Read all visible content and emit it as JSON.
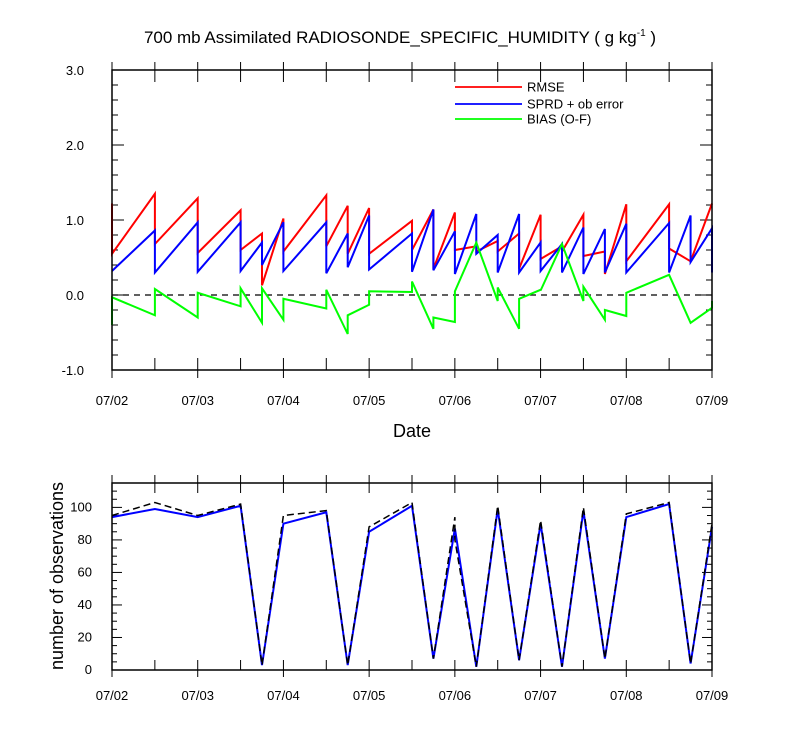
{
  "chart_data": [
    {
      "type": "line",
      "title_main": "700 mb Assimilated RADIOSONDE_SPECIFIC_HUMIDITY ( g kg",
      "title_sup": "-1",
      "title_end": " )",
      "xlabel": "Date",
      "ylabel": "",
      "xlim": [
        0,
        7
      ],
      "ylim": [
        -1.0,
        3.0
      ],
      "yticks": [
        -1.0,
        0.0,
        1.0,
        2.0,
        3.0
      ],
      "ytick_labels": [
        "-1.0",
        "0.0",
        "1.0",
        "2.0",
        "3.0"
      ],
      "xticks": [
        0,
        1,
        2,
        3,
        4,
        5,
        6,
        7
      ],
      "xtick_labels": [
        "07/02",
        "07/03",
        "07/04",
        "07/05",
        "07/06",
        "07/07",
        "07/08",
        "07/09"
      ],
      "zero_line": 0.0,
      "legend": [
        "RMSE",
        "SPRD + ob error",
        "BIAS (O-F)"
      ],
      "colors": {
        "RMSE": "#ff0000",
        "SPRD": "#0000ff",
        "BIAS": "#00ff00",
        "zero": "#000000"
      },
      "series": [
        {
          "name": "RMSE",
          "points": [
            [
              0,
              1.22
            ],
            [
              0,
              0.55
            ],
            [
              0.5,
              1.35
            ],
            [
              0.5,
              0.68
            ],
            [
              1,
              1.29
            ],
            [
              1,
              0.56
            ],
            [
              1.5,
              1.13
            ],
            [
              1.5,
              0.6
            ],
            [
              1.75,
              0.82
            ],
            [
              1.75,
              0.13
            ],
            [
              2,
              1.02
            ],
            [
              2,
              0.58
            ],
            [
              2.5,
              1.33
            ],
            [
              2.5,
              0.65
            ],
            [
              2.75,
              1.19
            ],
            [
              2.75,
              0.55
            ],
            [
              3,
              1.16
            ],
            [
              3,
              0.55
            ],
            [
              3.5,
              0.99
            ],
            [
              3.5,
              0.6
            ],
            [
              3.75,
              1.14
            ],
            [
              3.75,
              0.35
            ],
            [
              4,
              1.1
            ],
            [
              4,
              0.6
            ],
            [
              4.25,
              0.65
            ],
            [
              4.25,
              0.58
            ],
            [
              4.5,
              0.72
            ],
            [
              4.5,
              0.58
            ],
            [
              4.75,
              0.82
            ],
            [
              4.75,
              0.35
            ],
            [
              5,
              1.07
            ],
            [
              5,
              0.48
            ],
            [
              5.25,
              0.65
            ],
            [
              5.25,
              0.58
            ],
            [
              5.5,
              1.07
            ],
            [
              5.5,
              0.52
            ],
            [
              5.75,
              0.58
            ],
            [
              5.75,
              0.28
            ],
            [
              6,
              1.21
            ],
            [
              6,
              0.45
            ],
            [
              6.5,
              1.21
            ],
            [
              6.5,
              0.62
            ],
            [
              6.75,
              0.45
            ],
            [
              6.75,
              0.45
            ],
            [
              7,
              1.22
            ]
          ]
        },
        {
          "name": "SPRD + ob error",
          "points": [
            [
              0,
              0.32
            ],
            [
              0.5,
              0.86
            ],
            [
              0.5,
              0.3
            ],
            [
              1,
              0.97
            ],
            [
              1,
              0.31
            ],
            [
              1.5,
              0.97
            ],
            [
              1.5,
              0.32
            ],
            [
              1.75,
              0.7
            ],
            [
              1.75,
              0.4
            ],
            [
              2,
              0.97
            ],
            [
              2,
              0.32
            ],
            [
              2.5,
              0.97
            ],
            [
              2.5,
              0.29
            ],
            [
              2.75,
              0.82
            ],
            [
              2.75,
              0.37
            ],
            [
              3,
              1.06
            ],
            [
              3,
              0.34
            ],
            [
              3.5,
              0.82
            ],
            [
              3.5,
              0.31
            ],
            [
              3.75,
              1.14
            ],
            [
              3.75,
              0.33
            ],
            [
              4,
              0.85
            ],
            [
              4,
              0.28
            ],
            [
              4.25,
              1.08
            ],
            [
              4.25,
              0.55
            ],
            [
              4.5,
              0.8
            ],
            [
              4.5,
              0.3
            ],
            [
              4.75,
              1.08
            ],
            [
              4.75,
              0.3
            ],
            [
              5,
              0.7
            ],
            [
              5,
              0.32
            ],
            [
              5.25,
              0.68
            ],
            [
              5.25,
              0.3
            ],
            [
              5.5,
              0.9
            ],
            [
              5.5,
              0.28
            ],
            [
              5.75,
              0.88
            ],
            [
              5.75,
              0.3
            ],
            [
              6,
              0.95
            ],
            [
              6,
              0.3
            ],
            [
              6.5,
              0.96
            ],
            [
              6.5,
              0.3
            ],
            [
              6.75,
              1.06
            ],
            [
              6.75,
              0.44
            ],
            [
              7,
              0.89
            ],
            [
              7,
              0.3
            ]
          ]
        },
        {
          "name": "BIAS (O-F)",
          "points": [
            [
              0,
              -0.4
            ],
            [
              0,
              -0.03
            ],
            [
              0.5,
              -0.27
            ],
            [
              0.5,
              0.08
            ],
            [
              1,
              -0.3
            ],
            [
              1,
              0.03
            ],
            [
              1.5,
              -0.15
            ],
            [
              1.5,
              0.09
            ],
            [
              1.75,
              -0.37
            ],
            [
              1.75,
              0.09
            ],
            [
              2,
              -0.33
            ],
            [
              2,
              -0.05
            ],
            [
              2.5,
              -0.18
            ],
            [
              2.5,
              0.07
            ],
            [
              2.75,
              -0.52
            ],
            [
              2.75,
              -0.27
            ],
            [
              3,
              -0.13
            ],
            [
              3,
              0.05
            ],
            [
              3.5,
              0.04
            ],
            [
              3.5,
              0.18
            ],
            [
              3.75,
              -0.45
            ],
            [
              3.75,
              -0.3
            ],
            [
              4,
              -0.36
            ],
            [
              4,
              0.05
            ],
            [
              4.25,
              0.7
            ],
            [
              4.5,
              -0.08
            ],
            [
              4.5,
              0.1
            ],
            [
              4.75,
              -0.45
            ],
            [
              4.75,
              -0.05
            ],
            [
              5,
              0.07
            ],
            [
              5,
              0.06
            ],
            [
              5.25,
              0.68
            ],
            [
              5.5,
              -0.08
            ],
            [
              5.5,
              0.11
            ],
            [
              5.75,
              -0.33
            ],
            [
              5.75,
              -0.2
            ],
            [
              6,
              -0.28
            ],
            [
              6,
              0.03
            ],
            [
              6.5,
              0.27
            ],
            [
              6.75,
              -0.37
            ],
            [
              7,
              -0.17
            ],
            [
              7,
              -0.08
            ]
          ]
        }
      ]
    },
    {
      "type": "line",
      "title": "",
      "xlabel": "",
      "ylabel": "number of observations",
      "xlim": [
        0,
        7
      ],
      "ylim": [
        0,
        115
      ],
      "yticks": [
        0,
        20,
        40,
        60,
        80,
        100
      ],
      "ytick_labels": [
        "0",
        "20",
        "40",
        "60",
        "80",
        "100"
      ],
      "xticks": [
        0,
        1,
        2,
        3,
        4,
        5,
        6,
        7
      ],
      "xtick_labels": [
        "07/02",
        "07/03",
        "07/04",
        "07/05",
        "07/06",
        "07/07",
        "07/08",
        "07/09"
      ],
      "colors": {
        "used": "#0000ff",
        "available": "#000000"
      },
      "series": [
        {
          "name": "used",
          "style": "solid",
          "points": [
            [
              0,
              94
            ],
            [
              0.5,
              99
            ],
            [
              1,
              94
            ],
            [
              1.5,
              101
            ],
            [
              1.75,
              3
            ],
            [
              2,
              90
            ],
            [
              2.5,
              97
            ],
            [
              2.75,
              3
            ],
            [
              3,
              85
            ],
            [
              3.5,
              101
            ],
            [
              3.75,
              7
            ],
            [
              4,
              87
            ],
            [
              4.25,
              2
            ],
            [
              4.5,
              99
            ],
            [
              4.75,
              6
            ],
            [
              5,
              90
            ],
            [
              5.25,
              2
            ],
            [
              5.5,
              98
            ],
            [
              5.75,
              7
            ],
            [
              6,
              94
            ],
            [
              6.5,
              102
            ],
            [
              6.75,
              4
            ],
            [
              7,
              88
            ]
          ]
        },
        {
          "name": "available",
          "style": "dashed",
          "points": [
            [
              0,
              95
            ],
            [
              0.5,
              103
            ],
            [
              1,
              95
            ],
            [
              1.5,
              102
            ],
            [
              1.75,
              3
            ],
            [
              2,
              95
            ],
            [
              2.5,
              98
            ],
            [
              2.75,
              3
            ],
            [
              3,
              88
            ],
            [
              3.5,
              103
            ],
            [
              3.75,
              7
            ],
            [
              4,
              94
            ],
            [
              4,
              80
            ],
            [
              4.25,
              2
            ],
            [
              4.5,
              101
            ],
            [
              4.75,
              6
            ],
            [
              5,
              92
            ],
            [
              5.25,
              2
            ],
            [
              5.5,
              100
            ],
            [
              5.75,
              7
            ],
            [
              6,
              96
            ],
            [
              6.5,
              103
            ],
            [
              6.75,
              4
            ],
            [
              7,
              90
            ]
          ]
        }
      ]
    }
  ]
}
